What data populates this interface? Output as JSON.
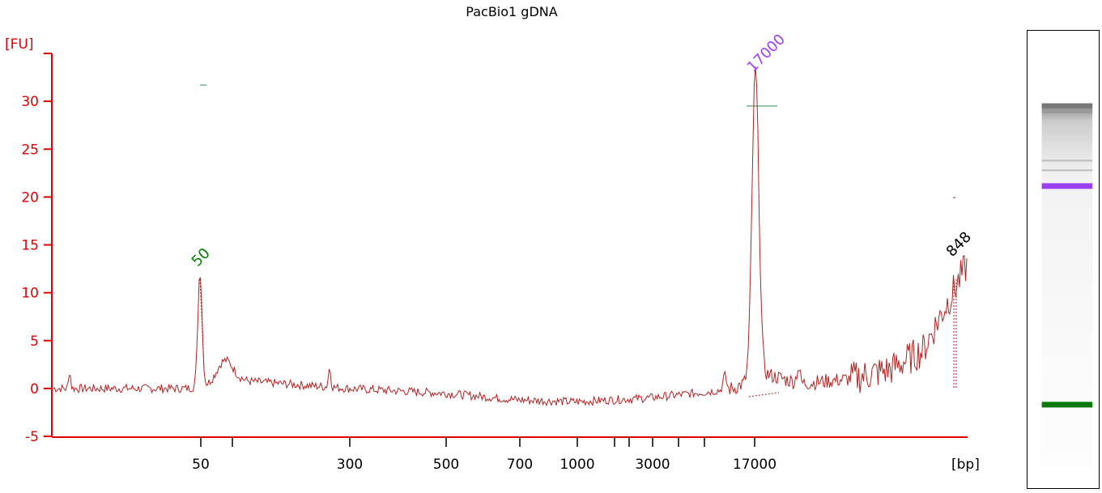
{
  "chart_data": {
    "type": "line",
    "title": "PacBio1 gDNA",
    "ylabel": "[FU]",
    "xlabel": "[bp]",
    "ylim": [
      -5,
      35
    ],
    "yticks": [
      -5,
      0,
      5,
      10,
      15,
      20,
      25,
      30
    ],
    "xtick_labels": [
      "50",
      "300",
      "500",
      "700",
      "1000",
      "3000",
      "17000"
    ],
    "series": [
      {
        "color": "#b22222",
        "x": [
          "start",
          "50",
          "60",
          "70",
          "300",
          "500",
          "700",
          "1000",
          "3000",
          "10000",
          "15000",
          "17000",
          "20000",
          "30000",
          "60000",
          "848"
        ],
        "values": [
          0,
          12,
          2.8,
          0.8,
          0,
          -0.5,
          -1.2,
          -1.4,
          -1.0,
          -0.3,
          0.5,
          32.5,
          1.5,
          0.5,
          4,
          14
        ]
      }
    ],
    "peaks": [
      {
        "label": "50",
        "color": "#008000"
      },
      {
        "label": "17000",
        "color": "#a040f0"
      },
      {
        "label": "848",
        "color": "#000000"
      }
    ]
  }
}
